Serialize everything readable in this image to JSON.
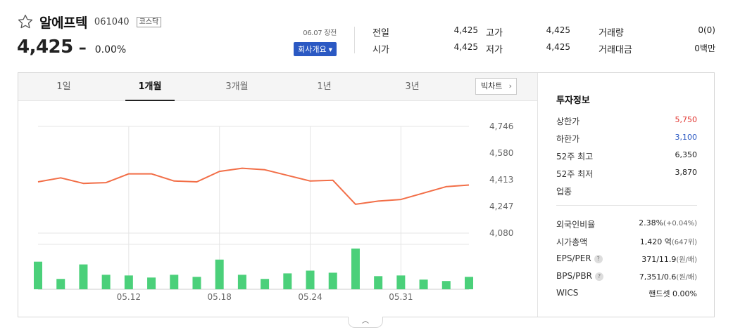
{
  "stock": {
    "name": "알에프텍",
    "code": "061040",
    "market": "코스닥",
    "price": "4,425",
    "change_sign": "–",
    "change_pct": "0.00%"
  },
  "session": {
    "date_status": "06.07 장전",
    "company_button": "회사개요"
  },
  "quote": {
    "prev_close_label": "전일",
    "prev_close": "4,425",
    "open_label": "시가",
    "open": "4,425",
    "high_label": "고가",
    "high": "4,425",
    "low_label": "저가",
    "low": "4,425",
    "volume_label": "거래량",
    "volume": "0(0)",
    "trade_value_label": "거래대금",
    "trade_value": "0백만"
  },
  "tabs": [
    {
      "label": "1일"
    },
    {
      "label": "1개월"
    },
    {
      "label": "3개월"
    },
    {
      "label": "1년"
    },
    {
      "label": "3년"
    }
  ],
  "active_tab": "1개월",
  "bigchart_label": "빅차트",
  "colors": {
    "line": "#f26e47",
    "bars": "#4bd07a",
    "up": "#e1322d",
    "down": "#2b59c3"
  },
  "chart_data": {
    "type": "line",
    "y_ticks": [
      "4,746",
      "4,580",
      "4,413",
      "4,247",
      "4,080"
    ],
    "y_tick_values": [
      4746,
      4580,
      4413,
      4247,
      4080
    ],
    "x_tick_labels": [
      "05.12",
      "05.18",
      "05.24",
      "05.31"
    ],
    "x_tick_index": [
      4,
      8,
      12,
      16
    ],
    "grid": true,
    "ylim": [
      4080,
      4746
    ],
    "series": [
      {
        "values": [
          4400,
          4425,
          4390,
          4395,
          4450,
          4450,
          4405,
          4400,
          4465,
          4485,
          4475,
          4440,
          4405,
          4410,
          4260,
          4280,
          4290,
          4330,
          4370,
          4380
        ]
      }
    ],
    "volume": {
      "type": "bar",
      "values": [
        40,
        15,
        36,
        21,
        20,
        17,
        21,
        18,
        43,
        21,
        15,
        23,
        27,
        24,
        59,
        19,
        20,
        14,
        12,
        18
      ]
    }
  },
  "invest": {
    "title": "투자정보",
    "upper_limit_label": "상한가",
    "upper_limit": "5,750",
    "lower_limit_label": "하한가",
    "lower_limit": "3,100",
    "w52_high_label": "52주 최고",
    "w52_high": "6,350",
    "w52_low_label": "52주 최저",
    "w52_low": "3,870",
    "industry_label": "업종",
    "foreign_label": "외국인비율",
    "foreign": "2.38%",
    "foreign_change": "(+0.04%)",
    "mcap_label": "시가총액",
    "mcap": "1,420 억",
    "mcap_rank": "(647위)",
    "eps_per_label": "EPS/PER",
    "eps_per": "371/11.9",
    "eps_per_unit": "(원/배)",
    "bps_pbr_label": "BPS/PBR",
    "bps_pbr": "7,351/0.6",
    "bps_pbr_unit": "(원/배)",
    "wics_label": "WICS",
    "wics": "핸드셋 0.00%"
  }
}
